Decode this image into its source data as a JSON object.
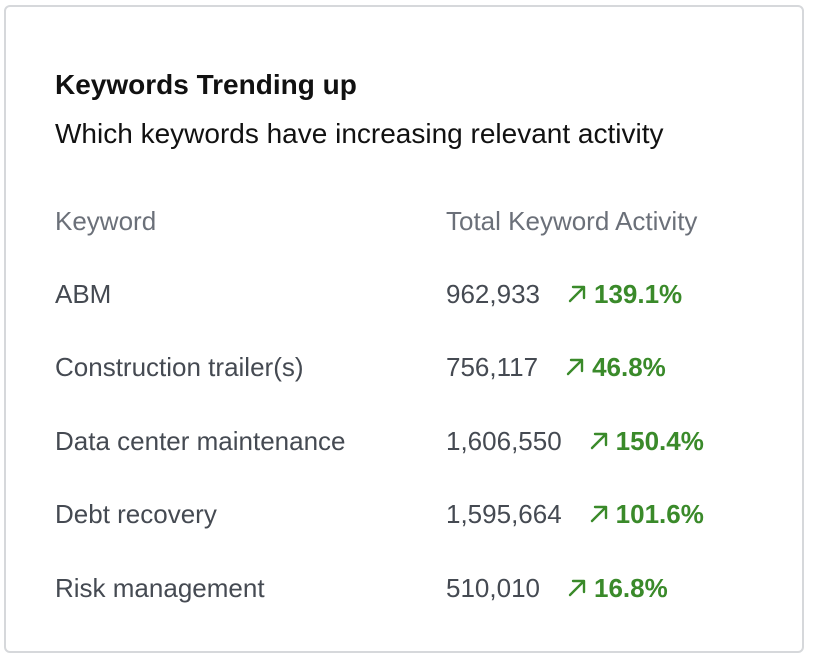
{
  "card": {
    "title": "Keywords Trending up",
    "subtitle": "Which keywords have increasing relevant activity"
  },
  "table": {
    "headers": {
      "keyword": "Keyword",
      "activity": "Total Keyword Activity"
    },
    "rows": [
      {
        "keyword": "ABM",
        "count": "962,933",
        "change": "139.1%",
        "trend_icon": "arrow-up-right-icon"
      },
      {
        "keyword": "Construction trailer(s)",
        "count": "756,117",
        "change": "46.8%",
        "trend_icon": "arrow-up-right-icon"
      },
      {
        "keyword": "Data center maintenance",
        "count": "1,606,550",
        "change": "150.4%",
        "trend_icon": "arrow-up-right-icon"
      },
      {
        "keyword": "Debt recovery",
        "count": "1,595,664",
        "change": "101.6%",
        "trend_icon": "arrow-up-right-icon"
      },
      {
        "keyword": "Risk management",
        "count": "510,010",
        "change": "16.8%",
        "trend_icon": "arrow-up-right-icon"
      }
    ]
  },
  "colors": {
    "trend_up": "#3a8a2a",
    "text_primary": "#111111",
    "text_secondary": "#454a52",
    "text_muted": "#6b7079",
    "border": "#d6d8db"
  }
}
